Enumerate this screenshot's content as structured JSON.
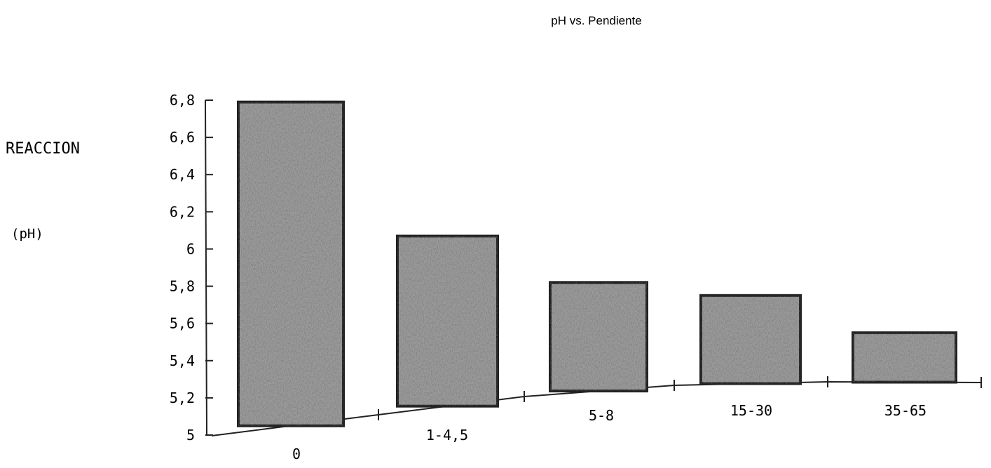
{
  "chart_data": {
    "type": "bar",
    "title": "pH vs. Pendiente",
    "ylabel": "REACCION",
    "ylabel_unit": "(pH)",
    "xlabel": "",
    "categories": [
      "0",
      "1-4,5",
      "5-8",
      "15-30",
      "35-65"
    ],
    "values": [
      6.79,
      6.07,
      5.82,
      5.75,
      5.55
    ],
    "ylim": [
      5,
      6.8
    ],
    "yticks": [
      "5",
      "5,2",
      "5,4",
      "5,6",
      "5,8",
      "6",
      "6,2",
      "6,4",
      "6,6",
      "6,8"
    ],
    "grid": false,
    "legend": "none",
    "colors": {
      "bar_fill": "#9a9a9a",
      "bar_edge": "#222222",
      "axis": "#222222"
    }
  }
}
